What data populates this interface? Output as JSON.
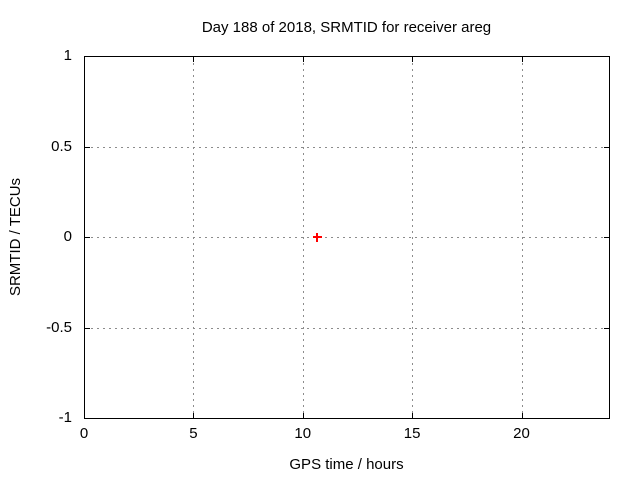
{
  "chart_data": {
    "type": "scatter",
    "title": "Day 188 of 2018, SRMTID for receiver areg",
    "xlabel": "GPS time / hours",
    "ylabel": "SRMTID / TECUs",
    "xlim": [
      0,
      24
    ],
    "ylim": [
      -1,
      1
    ],
    "xticks": [
      0,
      5,
      10,
      15,
      20
    ],
    "yticks": [
      -1,
      -0.5,
      0,
      0.5,
      1
    ],
    "grid": true,
    "grid_style": "dotted",
    "legend": "none",
    "series": [
      {
        "name": "SRMTID",
        "marker": "plus",
        "color": "#ff0000",
        "points": [
          {
            "x": 10.67,
            "y": 0.0
          }
        ]
      }
    ]
  },
  "colors": {
    "background": "#ffffff",
    "frame": "#000000",
    "grid": "#8c8c8c",
    "text": "#000000",
    "marker": "#ff0000"
  }
}
